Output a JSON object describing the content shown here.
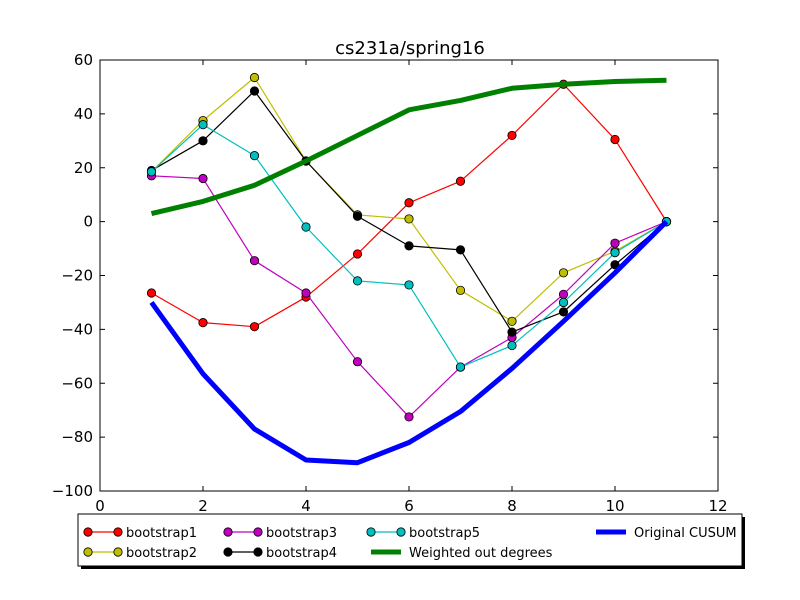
{
  "chart_data": {
    "type": "line",
    "title": "cs231a/spring16",
    "xlabel": "",
    "ylabel": "",
    "xlim": [
      0,
      12
    ],
    "ylim": [
      -100,
      60
    ],
    "xticks": [
      0,
      2,
      4,
      6,
      8,
      10,
      12
    ],
    "yticks": [
      -100,
      -80,
      -60,
      -40,
      -20,
      0,
      20,
      40,
      60
    ],
    "xtick_labels": [
      "0",
      "2",
      "4",
      "6",
      "8",
      "10",
      "12"
    ],
    "ytick_labels": [
      "−100",
      "−80",
      "−60",
      "−40",
      "−20",
      "0",
      "20",
      "40",
      "60"
    ],
    "grid": false,
    "legend_position": "below",
    "x": [
      1,
      2,
      3,
      4,
      5,
      6,
      7,
      8,
      9,
      10,
      11
    ],
    "series": [
      {
        "name": "bootstrap1",
        "color": "#ff0000",
        "marker": true,
        "thick": false,
        "values": [
          -26.5,
          -37.5,
          -39,
          -28,
          -12,
          7,
          15,
          32,
          51,
          30.5,
          0
        ]
      },
      {
        "name": "bootstrap2",
        "color": "#bfbf00",
        "marker": true,
        "thick": false,
        "values": [
          18.5,
          37.5,
          53.5,
          22.5,
          2.5,
          1,
          -25.5,
          -37,
          -19,
          -11,
          0
        ]
      },
      {
        "name": "bootstrap3",
        "color": "#bf00bf",
        "marker": true,
        "thick": false,
        "values": [
          17,
          16,
          -14.5,
          -26.5,
          -52,
          -72.5,
          -54,
          -43,
          -27,
          -8,
          0
        ]
      },
      {
        "name": "bootstrap4",
        "color": "#000000",
        "marker": true,
        "thick": false,
        "values": [
          19,
          30,
          48.5,
          22.5,
          2,
          -9,
          -10.5,
          -41,
          -33.5,
          -16,
          0
        ]
      },
      {
        "name": "bootstrap5",
        "color": "#00bfbf",
        "marker": true,
        "thick": false,
        "values": [
          18.5,
          36,
          24.5,
          -2,
          -22,
          -23.5,
          -54,
          -46,
          -30,
          -11.5,
          0
        ]
      },
      {
        "name": "Weighted out degrees",
        "color": "#008000",
        "marker": false,
        "thick": true,
        "values": [
          3,
          7.5,
          13.5,
          22.5,
          32,
          41.5,
          45,
          49.5,
          51,
          52,
          52.5
        ]
      },
      {
        "name": "Original CUSUM",
        "color": "#0000ff",
        "marker": false,
        "thick": true,
        "values": [
          -30,
          -56.5,
          -77,
          -88.5,
          -89.5,
          -82,
          -70.5,
          -54.5,
          -37,
          -19,
          0
        ]
      }
    ]
  }
}
